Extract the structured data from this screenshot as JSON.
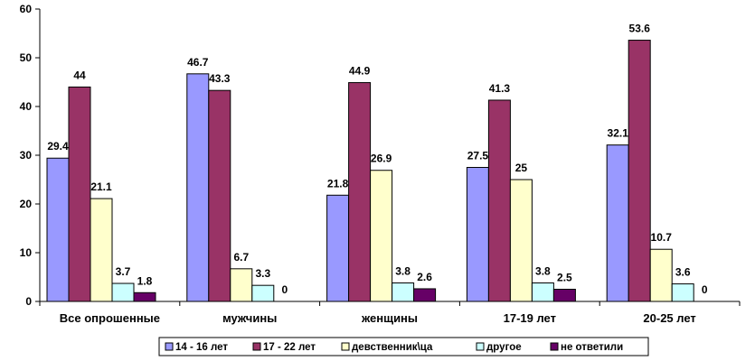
{
  "chart_data": {
    "type": "bar",
    "categories": [
      "Все опрошенные",
      "мужчины",
      "женщины",
      "17-19 лет",
      "20-25 лет"
    ],
    "series": [
      {
        "name": "14 - 16 лет",
        "values": [
          29.4,
          46.7,
          21.8,
          27.5,
          32.1
        ],
        "color": "#9999ff"
      },
      {
        "name": "17 - 22 лет",
        "values": [
          44,
          43.3,
          44.9,
          41.3,
          53.6
        ],
        "color": "#993366"
      },
      {
        "name": "девственник\\ца",
        "values": [
          21.1,
          6.7,
          26.9,
          25,
          10.7
        ],
        "color": "#ffffcc"
      },
      {
        "name": "другое",
        "values": [
          3.7,
          3.3,
          3.8,
          3.8,
          3.6
        ],
        "color": "#ccffff"
      },
      {
        "name": "не ответили",
        "values": [
          1.8,
          0,
          2.6,
          2.5,
          0
        ],
        "color": "#660066"
      }
    ],
    "data_labels": [
      [
        "29.4",
        "44",
        "21.1",
        "3.7",
        "1.8"
      ],
      [
        "46.7",
        "43.3",
        "6.7",
        "3.3",
        "0"
      ],
      [
        "21.8",
        "44.9",
        "26.9",
        "3.8",
        "2.6"
      ],
      [
        "27.5",
        "41.3",
        "25",
        "3.8",
        "2.5"
      ],
      [
        "32.1",
        "53.6",
        "10.7",
        "3.6",
        "0"
      ]
    ],
    "yticks": [
      "0",
      "10",
      "20",
      "30",
      "40",
      "50",
      "60"
    ],
    "ylim": [
      0,
      60
    ],
    "grid": false,
    "legend_position": "bottom"
  }
}
